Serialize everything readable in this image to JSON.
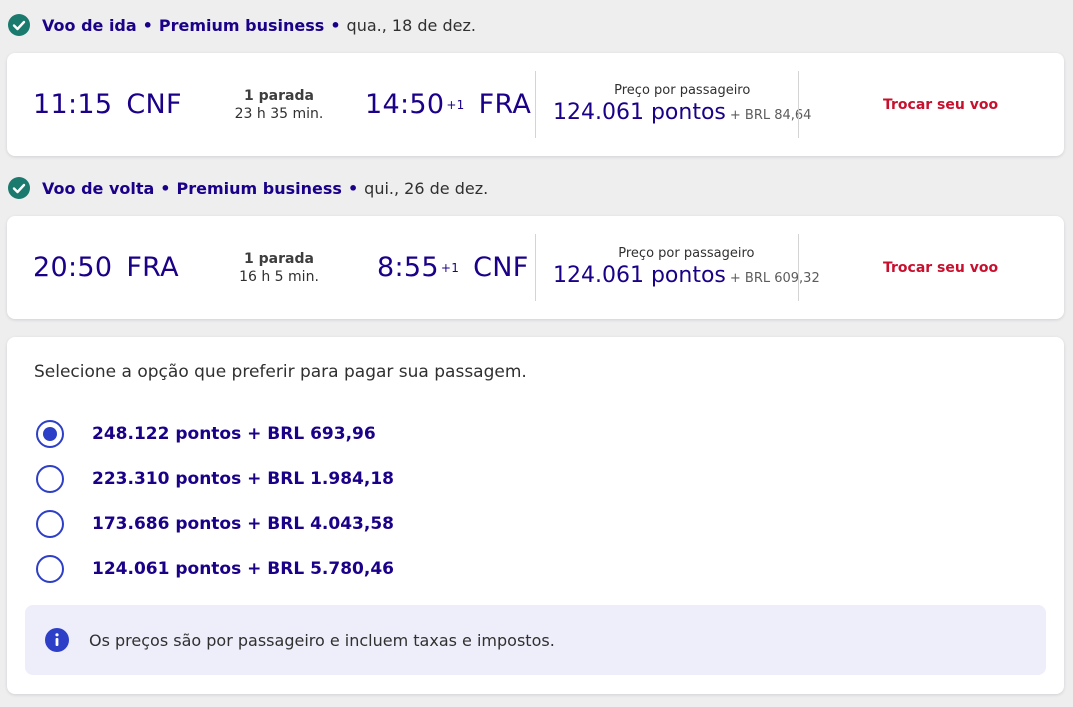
{
  "outbound": {
    "title": "Voo de ida",
    "cabin": "Premium business",
    "date": "qua., 18 de dez.",
    "departure_time": "11:15",
    "departure_code": "CNF",
    "stops": "1 parada",
    "duration": "23 h 35 min.",
    "arrival_time": "14:50",
    "arrival_offset": "+1",
    "arrival_code": "FRA",
    "price_label": "Preço por passageiro",
    "price_points": "124.061 pontos",
    "price_extra": "+ BRL 84,64",
    "change_label": "Trocar seu voo"
  },
  "return": {
    "title": "Voo de volta",
    "cabin": "Premium business",
    "date": "qui., 26 de dez.",
    "departure_time": "20:50",
    "departure_code": "FRA",
    "stops": "1 parada",
    "duration": "16 h 5 min.",
    "arrival_time": "8:55",
    "arrival_offset": "+1",
    "arrival_code": "CNF",
    "price_label": "Preço por passageiro",
    "price_points": "124.061 pontos",
    "price_extra": "+ BRL 609,32",
    "change_label": "Trocar seu voo"
  },
  "payment": {
    "instruction": "Selecione a opção que preferir para pagar sua passagem.",
    "options": [
      {
        "label": "248.122 pontos + BRL 693,96",
        "selected": true
      },
      {
        "label": "223.310 pontos + BRL 1.984,18",
        "selected": false
      },
      {
        "label": "173.686 pontos + BRL 4.043,58",
        "selected": false
      },
      {
        "label": "124.061 pontos + BRL 5.780,46",
        "selected": false
      }
    ],
    "info": "Os preços são por passageiro e incluem taxas e impostos."
  },
  "icons": {
    "check": "check-circle-icon",
    "info": "info-icon"
  },
  "colors": {
    "primary_text": "#1b0088",
    "accent_red": "#c8102e",
    "radio_blue": "#2e3fc7",
    "check_teal": "#1b7a6e",
    "info_bg": "#eeedfa"
  }
}
